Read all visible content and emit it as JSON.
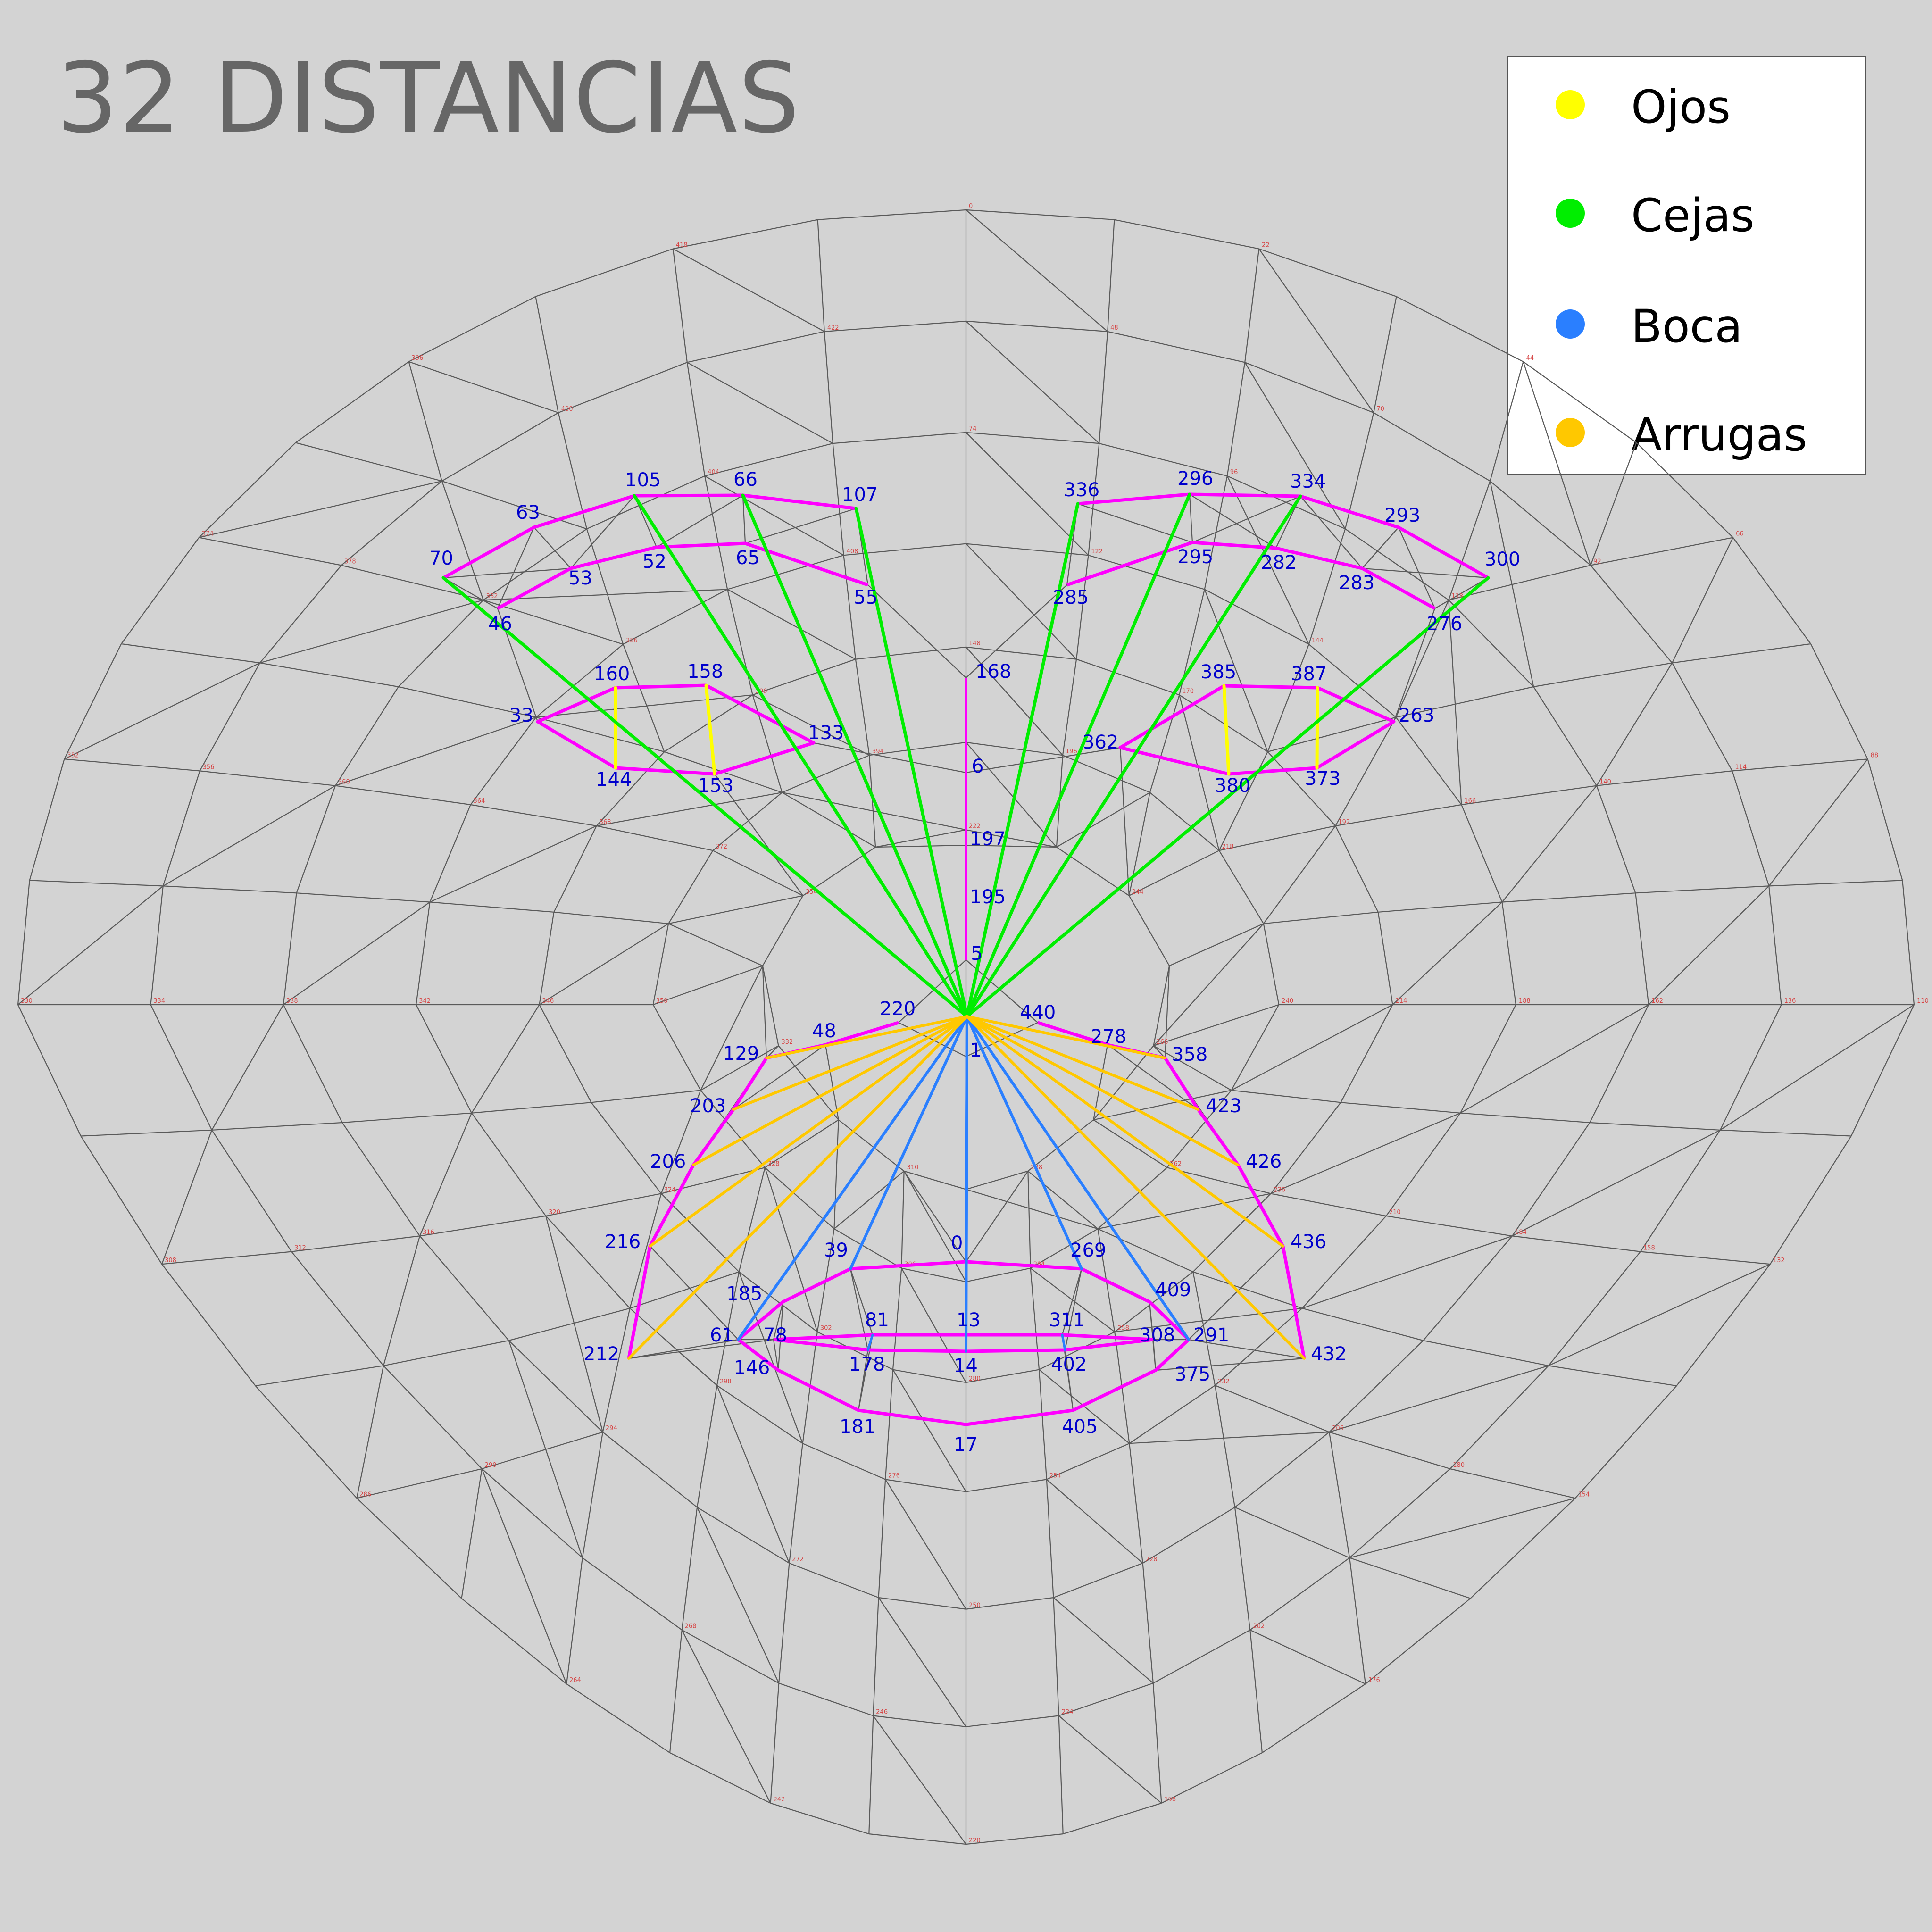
{
  "title": "32 DISTANCIAS",
  "legend": [
    {
      "label": "Ojos",
      "color": "#ffff00"
    },
    {
      "label": "Cejas",
      "color": "#00ee00"
    },
    {
      "label": "Boca",
      "color": "#2a7fff"
    },
    {
      "label": "Arrugas",
      "color": "#ffc800"
    }
  ],
  "colors": {
    "background": "#d3d3d3",
    "mesh_line": "#5a5a5a",
    "contour": "#ff00ff",
    "eyes": "#ffff00",
    "brows": "#00ee00",
    "mouth": "#2a7fff",
    "wrinkles": "#ffc800",
    "landmark_label": "#0000cc",
    "vertex_label": "#d64545"
  },
  "landmark_labels": [
    "105",
    "66",
    "107",
    "336",
    "296",
    "334",
    "63",
    "293",
    "70",
    "300",
    "53",
    "52",
    "65",
    "295",
    "282",
    "283",
    "55",
    "285",
    "46",
    "276",
    "168",
    "385",
    "387",
    "160",
    "158",
    "33",
    "263",
    "133",
    "362",
    "6",
    "144",
    "153",
    "380",
    "373",
    "197",
    "195",
    "5",
    "220",
    "440",
    "48",
    "278",
    "129",
    "358",
    "1",
    "203",
    "423",
    "206",
    "426",
    "216",
    "436",
    "39",
    "0",
    "269",
    "185",
    "409",
    "61",
    "78",
    "81",
    "13",
    "311",
    "308",
    "291",
    "212",
    "178",
    "14",
    "402",
    "432",
    "146",
    "375",
    "181",
    "17",
    "405"
  ]
}
